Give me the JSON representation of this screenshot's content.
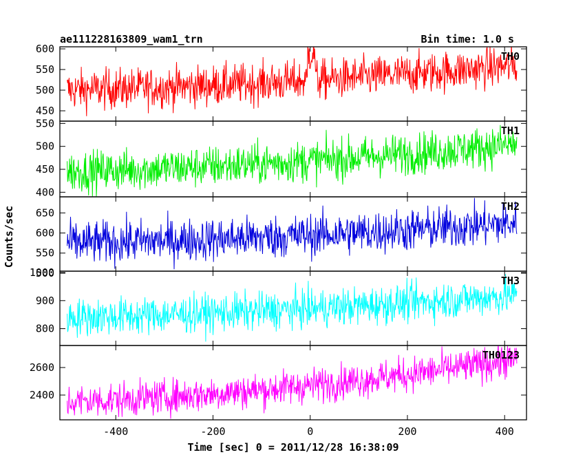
{
  "header": {
    "title_left": "ae111228163809_wam1_trn",
    "title_right": "Bin time: 1.0 s"
  },
  "chart_data": {
    "type": "line",
    "xlabel": "Time [sec] 0 = 2011/12/28 16:38:09",
    "ylabel": "Counts/sec",
    "xlim": [
      -515,
      445
    ],
    "x_ticks": [
      -400,
      -200,
      0,
      200,
      400
    ],
    "x_start": -500,
    "x_end": 425,
    "series": [
      {
        "name": "TH0",
        "color": "#ff0000",
        "ylim": [
          425,
          605
        ],
        "y_ticks": [
          450,
          500,
          550,
          600
        ],
        "trend_start": 500,
        "trend_end": 560,
        "noise": 35,
        "bump": {
          "from": -5,
          "to": 10,
          "value": 590
        }
      },
      {
        "name": "TH1",
        "color": "#00ee00",
        "ylim": [
          390,
          555
        ],
        "y_ticks": [
          400,
          450,
          500,
          550
        ],
        "trend_start": 445,
        "trend_end": 505,
        "noise": 32
      },
      {
        "name": "TH2",
        "color": "#0000dd",
        "ylim": [
          505,
          690
        ],
        "y_ticks": [
          500,
          550,
          600,
          650
        ],
        "trend_start": 575,
        "trend_end": 625,
        "noise": 38
      },
      {
        "name": "TH3",
        "color": "#00ffff",
        "ylim": [
          740,
          1005
        ],
        "y_ticks": [
          800,
          900,
          1000
        ],
        "trend_start": 840,
        "trend_end": 920,
        "noise": 48
      },
      {
        "name": "TH0123",
        "color": "#ff00ff",
        "ylim": [
          2220,
          2760
        ],
        "y_ticks": [
          2400,
          2600
        ],
        "trend_start": 2350,
        "trend_end": 2660,
        "noise": 90
      }
    ]
  }
}
